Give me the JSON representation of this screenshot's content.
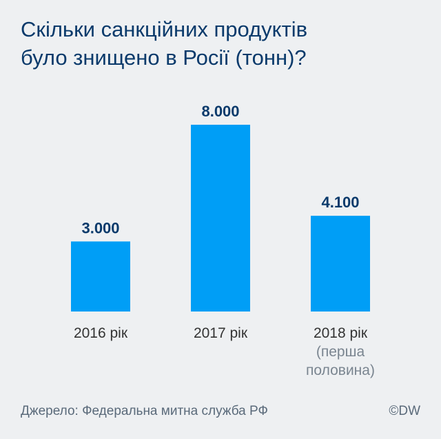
{
  "header": {
    "title_line1": "Скільки санкційних продуктів",
    "title_line2": "було знищено в Росії (тонн)?"
  },
  "chart_data": {
    "type": "bar",
    "categories": [
      [
        "2016 рік"
      ],
      [
        "2017 рік"
      ],
      [
        "2018 рік",
        "(перша",
        "половина)"
      ]
    ],
    "values": [
      3000,
      8000,
      4100
    ],
    "value_labels": [
      "3.000",
      "8.000",
      "4.100"
    ],
    "title": "Скільки санкційних продуктів було знищено в Росії (тонн)?",
    "xlabel": "",
    "ylabel": "",
    "ylim": [
      0,
      8000
    ],
    "grid": false,
    "colors": {
      "bar": "#009ef6",
      "value_label": "#0a3a6b",
      "category_label": "#333333",
      "category_sublabel": "#7a8590"
    }
  },
  "footer": {
    "source": "Джерело: Федеральна митна служба РФ",
    "credit": "©DW"
  }
}
